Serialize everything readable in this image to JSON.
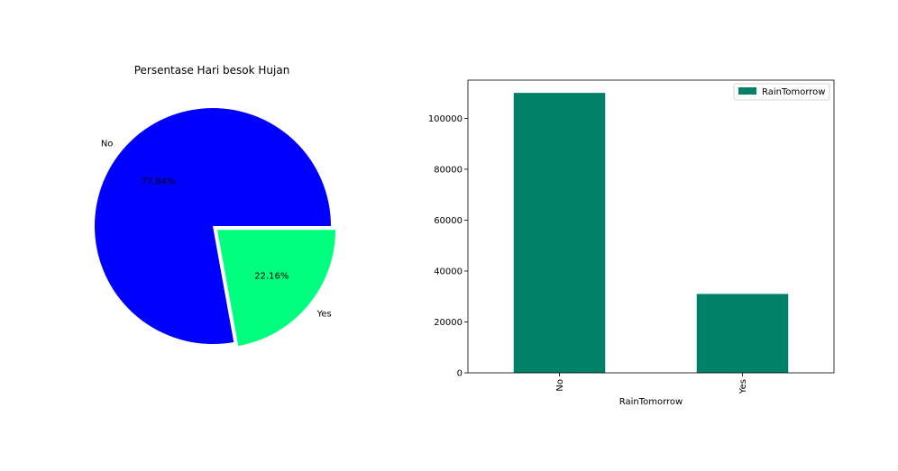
{
  "chart_data": [
    {
      "type": "pie",
      "title": "Persentase Hari besok Hujan",
      "labels": [
        "No",
        "Yes"
      ],
      "values": [
        77.84,
        22.16
      ],
      "autopct_labels": [
        "77.84%",
        "22.16%"
      ],
      "colors": [
        "#0000ff",
        "#00ff7f"
      ],
      "explode": [
        0,
        0.05
      ],
      "startangle": 0
    },
    {
      "type": "bar",
      "categories": [
        "No",
        "Yes"
      ],
      "series": [
        {
          "name": "RainTomorrow",
          "values": [
            110000,
            31000
          ],
          "color": "#008066"
        }
      ],
      "xlabel": "RainTomorrow",
      "ylabel": "",
      "ylim": [
        0,
        115000
      ],
      "yticks": [
        0,
        20000,
        40000,
        60000,
        80000,
        100000
      ],
      "ytick_labels": [
        "0",
        "20000",
        "40000",
        "60000",
        "80000",
        "100000"
      ],
      "legend_placement": "upper-right",
      "grid": false
    }
  ]
}
